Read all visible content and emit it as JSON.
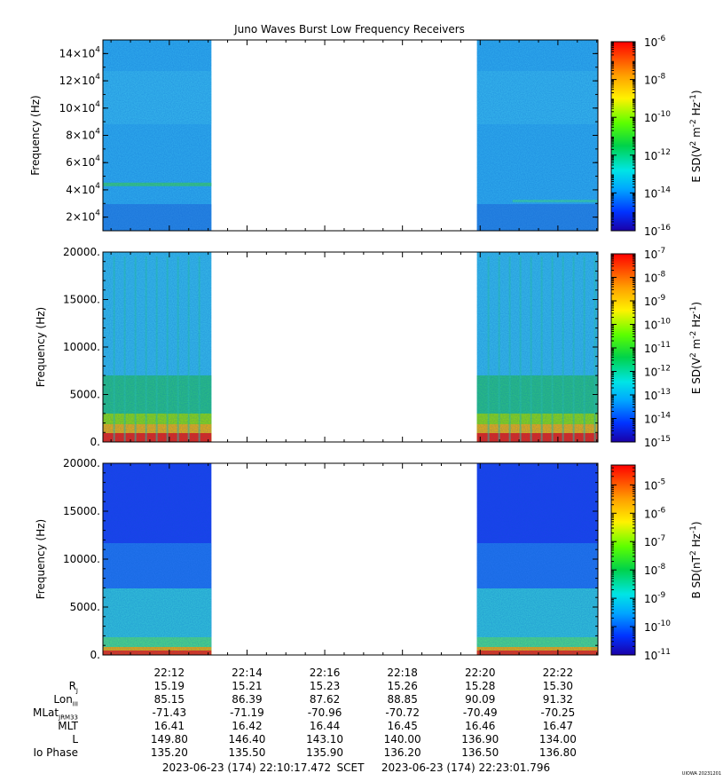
{
  "chart_data": [
    {
      "type": "heatmap",
      "title": "Juno Waves Burst Low Frequency Receivers",
      "ylabel": "Frequency (Hz)",
      "ylim": [
        10000,
        150000
      ],
      "yticks": [
        {
          "value": 20000,
          "mant": "2",
          "exp": "4"
        },
        {
          "value": 40000,
          "mant": "4",
          "exp": "4"
        },
        {
          "value": 60000,
          "mant": "6",
          "exp": "4"
        },
        {
          "value": 80000,
          "mant": "8",
          "exp": "4"
        },
        {
          "value": 100000,
          "mant": "10",
          "exp": "4"
        },
        {
          "value": 120000,
          "mant": "12",
          "exp": "4"
        },
        {
          "value": 140000,
          "mant": "14",
          "exp": "4"
        }
      ],
      "colorbar": {
        "label_parts": [
          "E SD(V",
          "2",
          " m",
          "-2",
          " Hz",
          "-1",
          ")"
        ],
        "exponents": [
          "-16",
          "-14",
          "-12",
          "-10",
          "-8",
          "-6"
        ],
        "range": [
          -16,
          -6
        ],
        "log": true
      },
      "data_segments_utc": [
        [
          "22:10:17",
          "22:13:05"
        ],
        [
          "22:19:55",
          "22:23:02"
        ]
      ]
    },
    {
      "type": "heatmap",
      "ylabel": "Frequency (Hz)",
      "ylim": [
        0,
        20000
      ],
      "yticks": [
        "0.",
        "5000.",
        "10000.",
        "15000.",
        "20000."
      ],
      "colorbar": {
        "label_parts": [
          "E SD(V",
          "2",
          " m",
          "-2",
          " Hz",
          "-1",
          ")"
        ],
        "exponents": [
          "-15",
          "-14",
          "-13",
          "-12",
          "-11",
          "-10",
          "-9",
          "-8",
          "-7"
        ],
        "range": [
          -15,
          -7
        ],
        "log": true
      },
      "data_segments_utc": [
        [
          "22:10:17",
          "22:13:05"
        ],
        [
          "22:19:55",
          "22:23:02"
        ]
      ]
    },
    {
      "type": "heatmap",
      "ylabel": "Frequency (Hz)",
      "ylim": [
        0,
        20000
      ],
      "yticks": [
        "0.",
        "5000.",
        "10000.",
        "15000.",
        "20000."
      ],
      "colorbar": {
        "label_parts": [
          "B SD(nT",
          "2",
          " Hz",
          "-1",
          ")"
        ],
        "exponents": [
          "-11",
          "-10",
          "-9",
          "-8",
          "-7",
          "-6",
          "-5"
        ],
        "range": [
          -11,
          -4.3
        ],
        "log": true
      },
      "data_segments_utc": [
        [
          "22:10:17",
          "22:13:05"
        ],
        [
          "22:19:55",
          "22:23:02"
        ]
      ]
    }
  ],
  "x_axis": {
    "tick_labels": [
      "22:12",
      "22:14",
      "22:16",
      "22:18",
      "22:20",
      "22:22"
    ],
    "start": "22:10:17.472",
    "end": "22:23:01.796"
  },
  "ephemeris": {
    "rows": [
      {
        "label": "R",
        "sub": "J",
        "values": [
          "15.19",
          "15.21",
          "15.23",
          "15.26",
          "15.28",
          "15.30"
        ]
      },
      {
        "label": "Lon",
        "sub": "III",
        "values": [
          "85.15",
          "86.39",
          "87.62",
          "88.85",
          "90.09",
          "91.32"
        ]
      },
      {
        "label": "MLat",
        "sub": "JRM33",
        "values": [
          "-71.43",
          "-71.19",
          "-70.96",
          "-70.72",
          "-70.49",
          "-70.25"
        ]
      },
      {
        "label": "MLT",
        "sub": "",
        "values": [
          "16.41",
          "16.42",
          "16.44",
          "16.45",
          "16.46",
          "16.47"
        ]
      },
      {
        "label": "L",
        "sub": "",
        "values": [
          "149.80",
          "146.40",
          "143.10",
          "140.00",
          "136.90",
          "134.00"
        ]
      },
      {
        "label": "Io Phase",
        "sub": "",
        "values": [
          "135.20",
          "135.50",
          "135.90",
          "136.20",
          "136.50",
          "136.80"
        ]
      }
    ]
  },
  "footer": {
    "start_text": "2023-06-23 (174) 22:10:17.472",
    "scet_text": "SCET",
    "end_text": "2023-06-23 (174) 22:23:01.796",
    "stamp": "UIOWA 20231201"
  }
}
